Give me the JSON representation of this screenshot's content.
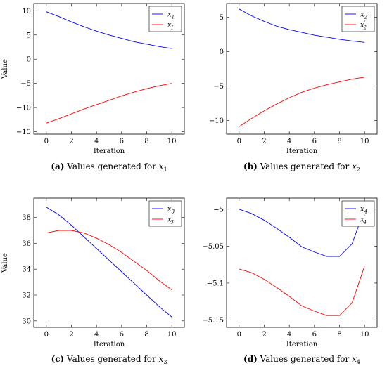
{
  "chart_data": [
    {
      "type": "line",
      "caption_label": "(a)",
      "caption_text": "Values generated for",
      "caption_var": "x",
      "caption_sub": "1",
      "xlabel": "Iteration",
      "ylabel": "Value",
      "xlim": [
        -1,
        11
      ],
      "ylim": [
        -15.5,
        11.5
      ],
      "xticks": [
        0,
        2,
        4,
        6,
        8,
        10
      ],
      "yticks": [
        -15,
        -10,
        -5,
        0,
        5,
        10
      ],
      "ytick_labels": [
        "−15",
        "−10",
        "−5",
        "0",
        "5",
        "10"
      ],
      "legend_placement": "top-right",
      "x": [
        0,
        1,
        2,
        3,
        4,
        5,
        6,
        7,
        8,
        9,
        10
      ],
      "series": [
        {
          "name": "x",
          "sub": "1",
          "prime": false,
          "color": "#0000ff",
          "values": [
            9.8,
            8.8,
            7.7,
            6.7,
            5.8,
            5.0,
            4.3,
            3.6,
            3.1,
            2.6,
            2.2
          ]
        },
        {
          "name": "x",
          "sub": "1",
          "prime": true,
          "color": "#ff0000",
          "values": [
            -13.2,
            -12.3,
            -11.3,
            -10.3,
            -9.4,
            -8.5,
            -7.6,
            -6.8,
            -6.1,
            -5.5,
            -5.0
          ]
        }
      ]
    },
    {
      "type": "line",
      "caption_label": "(b)",
      "caption_text": "Values generated for",
      "caption_var": "x",
      "caption_sub": "2",
      "xlabel": "Iteration",
      "ylabel": "",
      "xlim": [
        -1,
        11
      ],
      "ylim": [
        -12,
        7
      ],
      "xticks": [
        0,
        2,
        4,
        6,
        8,
        10
      ],
      "yticks": [
        -10,
        -5,
        0,
        5
      ],
      "ytick_labels": [
        "−10",
        "−5",
        "0",
        "5"
      ],
      "legend_placement": "top-right",
      "x": [
        0,
        1,
        2,
        3,
        4,
        5,
        6,
        7,
        8,
        9,
        10
      ],
      "series": [
        {
          "name": "x",
          "sub": "2",
          "prime": false,
          "color": "#0000ff",
          "values": [
            6.2,
            5.2,
            4.4,
            3.7,
            3.2,
            2.8,
            2.4,
            2.1,
            1.8,
            1.55,
            1.35
          ]
        },
        {
          "name": "x",
          "sub": "2",
          "prime": true,
          "color": "#ff0000",
          "values": [
            -10.9,
            -9.7,
            -8.6,
            -7.6,
            -6.7,
            -5.9,
            -5.3,
            -4.8,
            -4.4,
            -4.0,
            -3.7
          ]
        }
      ]
    },
    {
      "type": "line",
      "caption_label": "(c)",
      "caption_text": "Values generated for",
      "caption_var": "x",
      "caption_sub": "3",
      "xlabel": "Iteration",
      "ylabel": "Value",
      "xlim": [
        -1,
        11
      ],
      "ylim": [
        29.5,
        39.5
      ],
      "xticks": [
        0,
        2,
        4,
        6,
        8,
        10
      ],
      "yticks": [
        30,
        32,
        34,
        36,
        38
      ],
      "ytick_labels": [
        "30",
        "32",
        "34",
        "36",
        "38"
      ],
      "legend_placement": "top-right",
      "x": [
        0,
        1,
        2,
        3,
        4,
        5,
        6,
        7,
        8,
        9,
        10
      ],
      "series": [
        {
          "name": "x",
          "sub": "3",
          "prime": false,
          "color": "#0000ff",
          "values": [
            38.8,
            38.2,
            37.4,
            36.5,
            35.6,
            34.7,
            33.8,
            32.9,
            32.0,
            31.1,
            30.3
          ]
        },
        {
          "name": "x",
          "sub": "3",
          "prime": true,
          "color": "#ff0000",
          "values": [
            36.8,
            37.0,
            37.0,
            36.8,
            36.4,
            35.9,
            35.3,
            34.6,
            33.9,
            33.1,
            32.4
          ]
        }
      ]
    },
    {
      "type": "line",
      "caption_label": "(d)",
      "caption_text": "Values generated for",
      "caption_var": "x",
      "caption_sub": "4",
      "xlabel": "Iteration",
      "ylabel": "",
      "xlim": [
        -1,
        11
      ],
      "ylim": [
        -5.16,
        -4.985
      ],
      "xticks": [
        0,
        2,
        4,
        6,
        8,
        10
      ],
      "yticks": [
        -5.15,
        -5.1,
        -5.05,
        -5.0
      ],
      "ytick_labels": [
        "−5.15",
        "−5.1",
        "−5.05",
        "−5"
      ],
      "legend_placement": "top-right",
      "x": [
        0,
        1,
        2,
        3,
        4,
        5,
        6,
        7,
        8,
        9,
        10
      ],
      "series": [
        {
          "name": "x",
          "sub": "4",
          "prime": false,
          "color": "#0000ff",
          "values": [
            -5.0,
            -5.006,
            -5.015,
            -5.026,
            -5.038,
            -5.051,
            -5.058,
            -5.064,
            -5.064,
            -5.047,
            -5.0
          ]
        },
        {
          "name": "x",
          "sub": "4",
          "prime": true,
          "color": "#ff0000",
          "values": [
            -5.081,
            -5.086,
            -5.095,
            -5.106,
            -5.118,
            -5.131,
            -5.138,
            -5.144,
            -5.144,
            -5.127,
            -5.077
          ]
        }
      ]
    }
  ]
}
